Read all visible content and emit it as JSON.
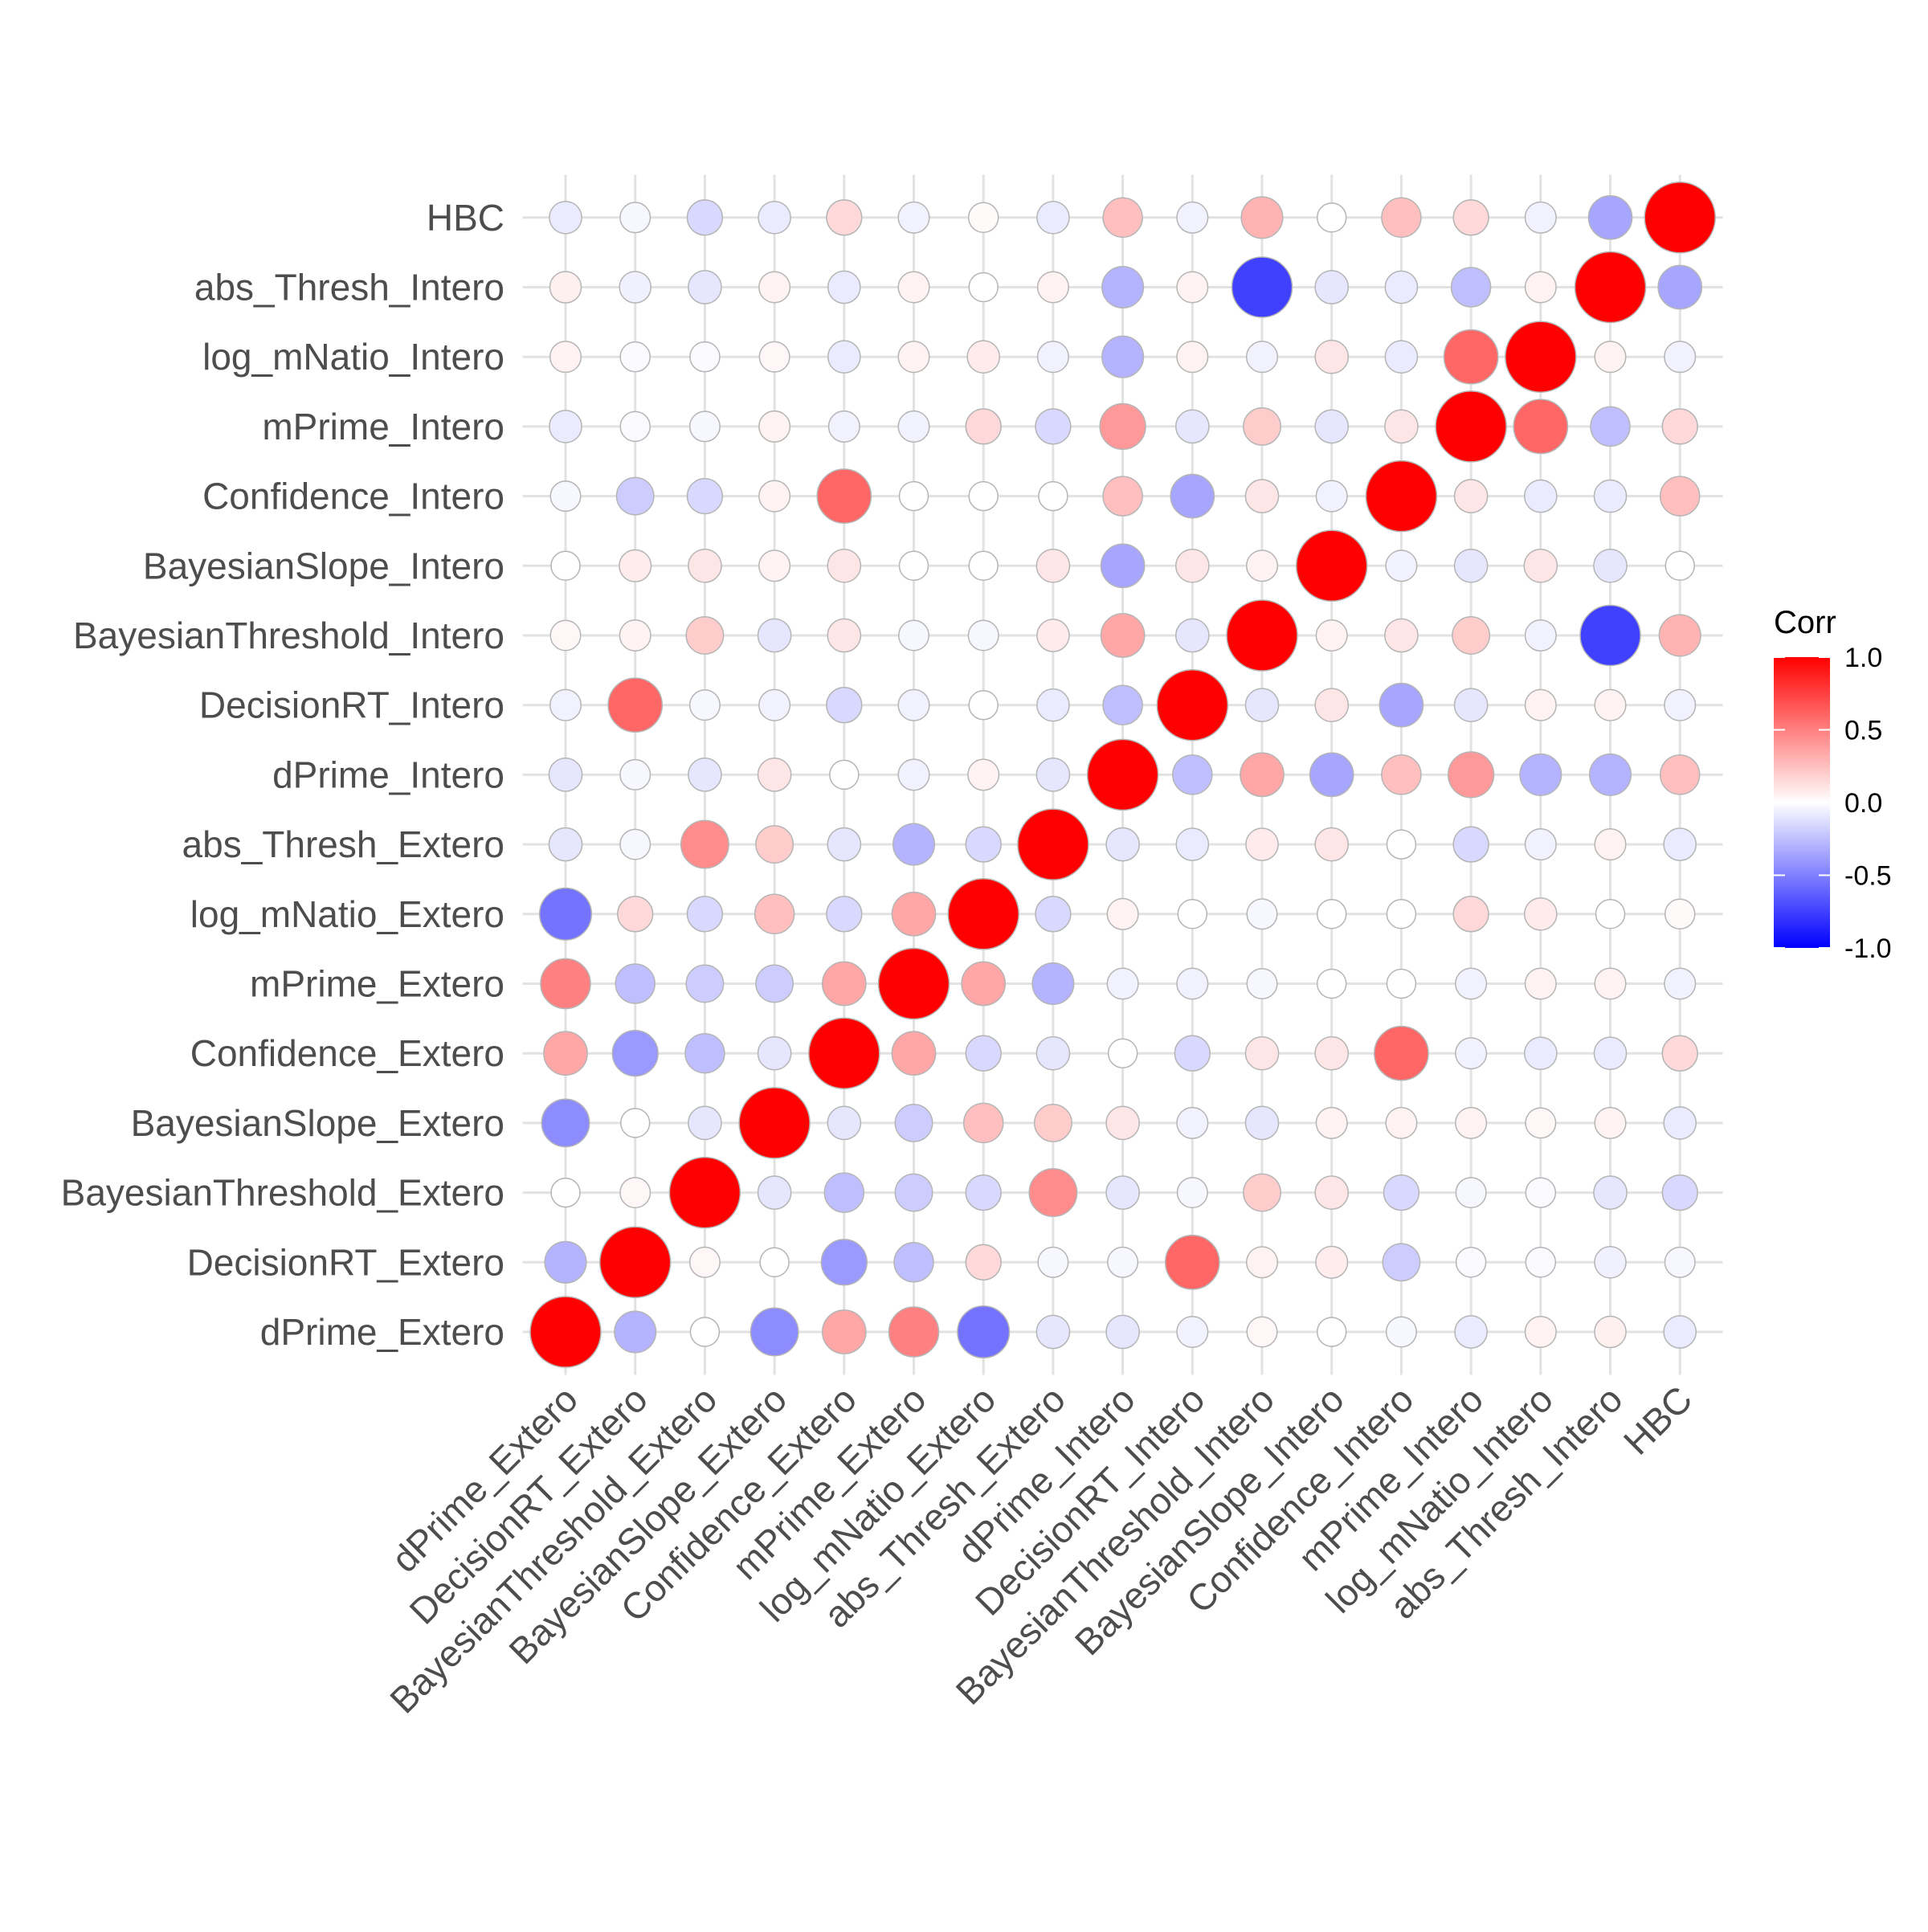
{
  "chart_data": {
    "type": "heatmap",
    "mark": "circle",
    "variables": [
      "dPrime_Extero",
      "DecisionRT_Extero",
      "BayesianThreshold_Extero",
      "BayesianSlope_Extero",
      "Confidence_Extero",
      "mPrime_Extero",
      "log_mNatio_Extero",
      "abs_Thresh_Extero",
      "dPrime_Intero",
      "DecisionRT_Intero",
      "BayesianThreshold_Intero",
      "BayesianSlope_Intero",
      "Confidence_Intero",
      "mPrime_Intero",
      "log_mNatio_Intero",
      "abs_Thresh_Intero",
      "HBC"
    ],
    "matrix": [
      [
        1.0,
        -0.3,
        0.0,
        -0.45,
        0.35,
        0.5,
        -0.55,
        -0.1,
        -0.1,
        -0.05,
        0.03,
        0.0,
        -0.03,
        -0.08,
        0.05,
        0.06,
        -0.08
      ],
      [
        -0.3,
        1.0,
        0.03,
        0.0,
        -0.4,
        -0.25,
        0.15,
        -0.03,
        -0.03,
        0.6,
        0.05,
        0.07,
        -0.2,
        -0.02,
        -0.02,
        -0.06,
        -0.03
      ],
      [
        0.0,
        0.03,
        1.0,
        -0.1,
        -0.25,
        -0.2,
        -0.15,
        0.45,
        -0.1,
        -0.03,
        0.2,
        0.1,
        -0.15,
        -0.03,
        -0.02,
        -0.1,
        -0.15
      ],
      [
        -0.45,
        0.0,
        -0.1,
        1.0,
        -0.1,
        -0.2,
        0.25,
        0.2,
        0.1,
        -0.05,
        -0.1,
        0.05,
        0.05,
        0.05,
        0.03,
        0.05,
        -0.08
      ],
      [
        0.35,
        -0.4,
        -0.25,
        -0.1,
        1.0,
        0.35,
        -0.15,
        -0.1,
        0.0,
        -0.15,
        0.1,
        0.1,
        0.6,
        -0.05,
        -0.08,
        -0.08,
        0.15
      ],
      [
        0.5,
        -0.25,
        -0.2,
        -0.2,
        0.35,
        1.0,
        0.35,
        -0.3,
        -0.05,
        -0.05,
        -0.03,
        0.0,
        0.0,
        -0.05,
        0.05,
        0.05,
        -0.05
      ],
      [
        -0.55,
        0.15,
        -0.15,
        0.25,
        -0.15,
        0.35,
        1.0,
        -0.15,
        0.05,
        0.0,
        -0.03,
        0.0,
        0.0,
        0.15,
        0.08,
        0.0,
        0.02
      ],
      [
        -0.1,
        -0.03,
        0.45,
        0.2,
        -0.1,
        -0.3,
        -0.15,
        1.0,
        -0.1,
        -0.08,
        0.08,
        0.1,
        0.0,
        -0.15,
        -0.05,
        0.05,
        -0.08
      ],
      [
        -0.1,
        -0.03,
        -0.1,
        0.1,
        0.0,
        -0.05,
        0.05,
        -0.1,
        1.0,
        -0.25,
        0.35,
        -0.35,
        0.25,
        0.4,
        -0.3,
        -0.3,
        0.25
      ],
      [
        -0.05,
        0.6,
        -0.03,
        -0.05,
        -0.15,
        -0.05,
        0.0,
        -0.08,
        -0.25,
        1.0,
        -0.1,
        0.1,
        -0.35,
        -0.1,
        0.05,
        0.05,
        -0.05
      ],
      [
        0.03,
        0.05,
        0.2,
        -0.1,
        0.1,
        -0.03,
        -0.03,
        0.08,
        0.35,
        -0.1,
        1.0,
        0.05,
        0.1,
        0.2,
        -0.05,
        -0.75,
        0.3
      ],
      [
        0.0,
        0.07,
        0.1,
        0.05,
        0.1,
        0.0,
        0.0,
        0.1,
        -0.35,
        0.1,
        0.05,
        1.0,
        -0.05,
        -0.1,
        0.1,
        -0.1,
        0.0
      ],
      [
        -0.03,
        -0.2,
        -0.15,
        0.05,
        0.6,
        0.0,
        0.0,
        0.0,
        0.25,
        -0.35,
        0.1,
        -0.05,
        1.0,
        0.1,
        -0.08,
        -0.08,
        0.25
      ],
      [
        -0.08,
        -0.02,
        -0.03,
        0.05,
        -0.05,
        -0.05,
        0.15,
        -0.15,
        0.4,
        -0.1,
        0.2,
        -0.1,
        0.1,
        1.0,
        0.6,
        -0.25,
        0.15
      ],
      [
        0.05,
        -0.02,
        -0.02,
        0.03,
        -0.08,
        0.05,
        0.08,
        -0.05,
        -0.3,
        0.05,
        -0.05,
        0.1,
        -0.08,
        0.6,
        1.0,
        0.05,
        -0.05
      ],
      [
        0.06,
        -0.06,
        -0.1,
        0.05,
        -0.08,
        0.05,
        0.0,
        0.05,
        -0.3,
        0.05,
        -0.75,
        -0.1,
        -0.08,
        -0.25,
        0.05,
        1.0,
        -0.35
      ],
      [
        -0.08,
        -0.03,
        -0.15,
        -0.08,
        0.15,
        -0.05,
        0.02,
        -0.08,
        0.25,
        -0.05,
        0.3,
        0.0,
        0.25,
        0.15,
        -0.05,
        -0.35,
        1.0
      ]
    ],
    "legend": {
      "title": "Corr",
      "breaks": [
        "1.0",
        "0.5",
        "0.0",
        "-0.5",
        "-1.0"
      ],
      "placement": "right",
      "low_color": "#0000FF",
      "mid_color": "#FFFFFF",
      "high_color": "#FF0000",
      "limits": [
        -1,
        1
      ]
    },
    "grid": true,
    "x_tick_rotation_deg": 45,
    "background": "#FFFFFF"
  }
}
